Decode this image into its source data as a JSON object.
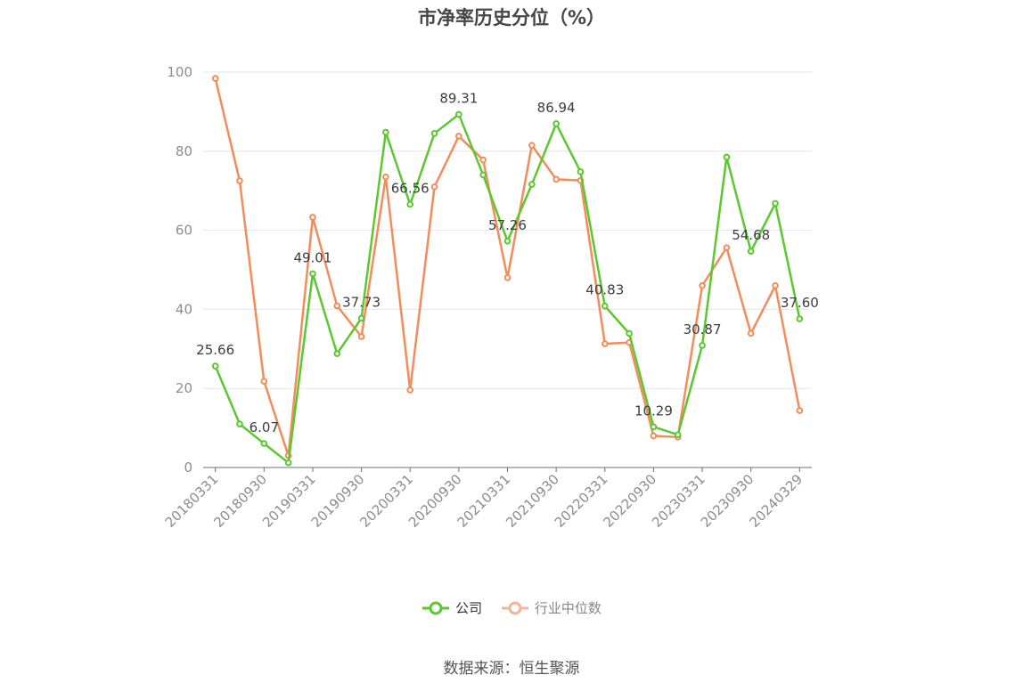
{
  "title": "市净率历史分位（%）",
  "source": "数据来源：恒生聚源",
  "chart_data": {
    "type": "line",
    "title": "市净率历史分位（%）",
    "ylim": [
      0,
      100
    ],
    "yticks": [
      0,
      20,
      40,
      60,
      80,
      100
    ],
    "grid": true,
    "legend_position": "bottom",
    "x": [
      "20180331",
      "20180630",
      "20180930",
      "20181231",
      "20190331",
      "20190630",
      "20190930",
      "20191231",
      "20200331",
      "20200630",
      "20200930",
      "20201231",
      "20210331",
      "20210630",
      "20210930",
      "20211231",
      "20220331",
      "20220630",
      "20220930",
      "20221231",
      "20230331",
      "20230630",
      "20230930",
      "20231231",
      "20240329"
    ],
    "xtick_labels": [
      "20180331",
      "20180930",
      "20190331",
      "20190930",
      "20200331",
      "20200930",
      "20210331",
      "20210930",
      "20220331",
      "20220930",
      "20230331",
      "20230930",
      "20240329"
    ],
    "series": [
      {
        "name": "公司",
        "color": "#5ac82e",
        "values": [
          25.66,
          11.0,
          6.07,
          1.2,
          49.01,
          28.8,
          37.73,
          84.8,
          66.56,
          84.5,
          89.31,
          74.0,
          57.26,
          71.6,
          86.94,
          74.8,
          40.83,
          33.9,
          10.29,
          8.3,
          30.87,
          78.5,
          54.68,
          66.8,
          37.6
        ],
        "labels": [
          "25.66",
          "",
          "6.07",
          "",
          "49.01",
          "",
          "37.73",
          "",
          "66.56",
          "",
          "89.31",
          "",
          "57.26",
          "",
          "86.94",
          "",
          "40.83",
          "",
          "10.29",
          "",
          "30.87",
          "",
          "54.68",
          "",
          "37.60"
        ]
      },
      {
        "name": "行业中位数",
        "color": "#f28c5a",
        "values": [
          98.4,
          72.5,
          21.8,
          3.0,
          63.3,
          40.9,
          33.1,
          73.5,
          19.6,
          71.0,
          83.8,
          77.8,
          48.0,
          81.5,
          72.9,
          72.6,
          31.3,
          31.6,
          8.0,
          7.7,
          46.0,
          55.6,
          33.9,
          46.0,
          14.4
        ]
      }
    ]
  }
}
